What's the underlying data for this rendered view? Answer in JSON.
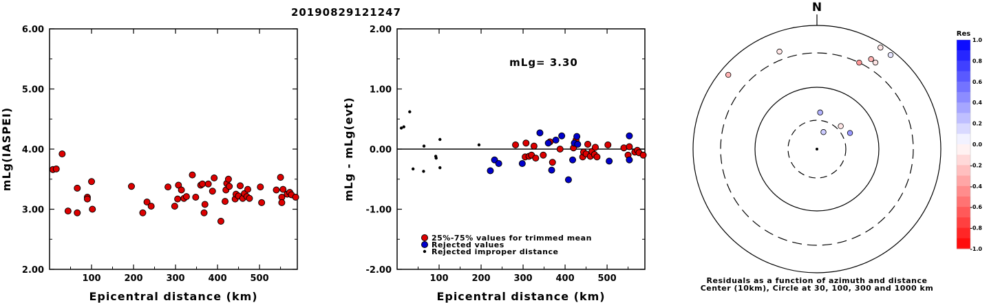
{
  "title": "20190829121247",
  "magnitude_label": "mLg= 3.30",
  "polar_north": "N",
  "polar_caption_1": "Residuals as a function of azimuth and distance",
  "polar_caption_2": "Center (10km), Circle at 30, 100, 300 and 1000 km",
  "colorbar_title": "Res",
  "colorbar_ticks": [
    "1.0",
    "0.8",
    "0.6",
    "0.4",
    "0.2",
    "0.0",
    "-0.2",
    "-0.4",
    "-0.6",
    "-0.8",
    "-1.0"
  ],
  "legend": [
    {
      "label": "25%-75% values for trimmed mean",
      "color": "#dd0000",
      "kind": "circle"
    },
    {
      "label": "Rejected values",
      "color": "#0000cc",
      "kind": "circle"
    },
    {
      "label": "Rejected improper distance",
      "color": "#000000",
      "kind": "dot"
    }
  ],
  "chart_data": [
    {
      "type": "scatter",
      "xlabel": "Epicentral distance (km)",
      "ylabel": "mLg(IASPEI)",
      "xlim": [
        0,
        590
      ],
      "ylim": [
        2.0,
        6.0
      ],
      "x_ticks": [
        "100",
        "200",
        "300",
        "400",
        "500"
      ],
      "y_ticks": [
        "2.00",
        "3.00",
        "4.00",
        "5.00",
        "6.00"
      ],
      "series": [
        {
          "color": "#dd0000",
          "points": [
            [
              8,
              3.66
            ],
            [
              16,
              3.67
            ],
            [
              30,
              3.92
            ],
            [
              44,
              2.97
            ],
            [
              66,
              2.94
            ],
            [
              66,
              3.35
            ],
            [
              90,
              3.2
            ],
            [
              90,
              3.17
            ],
            [
              100,
              3.46
            ],
            [
              102,
              3.0
            ],
            [
              195,
              3.38
            ],
            [
              222,
              2.94
            ],
            [
              232,
              3.12
            ],
            [
              242,
              3.05
            ],
            [
              282,
              3.37
            ],
            [
              298,
              3.05
            ],
            [
              305,
              3.17
            ],
            [
              307,
              3.4
            ],
            [
              314,
              3.32
            ],
            [
              320,
              3.18
            ],
            [
              326,
              3.21
            ],
            [
              340,
              3.57
            ],
            [
              348,
              3.2
            ],
            [
              360,
              3.4
            ],
            [
              364,
              3.42
            ],
            [
              368,
              2.94
            ],
            [
              370,
              3.08
            ],
            [
              378,
              3.42
            ],
            [
              388,
              3.3
            ],
            [
              392,
              3.52
            ],
            [
              408,
              2.8
            ],
            [
              418,
              3.13
            ],
            [
              420,
              3.32
            ],
            [
              422,
              3.43
            ],
            [
              426,
              3.5
            ],
            [
              428,
              3.38
            ],
            [
              442,
              3.17
            ],
            [
              444,
              3.25
            ],
            [
              450,
              3.22
            ],
            [
              454,
              3.39
            ],
            [
              460,
              3.18
            ],
            [
              464,
              3.26
            ],
            [
              470,
              3.21
            ],
            [
              472,
              3.33
            ],
            [
              476,
              3.18
            ],
            [
              502,
              3.37
            ],
            [
              505,
              3.11
            ],
            [
              540,
              3.32
            ],
            [
              550,
              3.53
            ],
            [
              553,
              3.2
            ],
            [
              553,
              3.11
            ],
            [
              556,
              3.33
            ],
            [
              566,
              3.25
            ],
            [
              572,
              3.28
            ],
            [
              576,
              3.24
            ],
            [
              586,
              3.2
            ]
          ]
        }
      ]
    },
    {
      "type": "scatter",
      "xlabel": "Epicentral distance (km)",
      "ylabel": "mLg - mLg(evt)",
      "xlim": [
        0,
        590
      ],
      "ylim": [
        -2.0,
        2.0
      ],
      "x_ticks": [
        "100",
        "200",
        "300",
        "400",
        "500"
      ],
      "y_ticks": [
        "-2.00",
        "-1.00",
        "0.00",
        "1.00",
        "2.00"
      ],
      "series": [
        {
          "name": "25%-75% values for trimmed mean",
          "color": "#dd0000",
          "points": [
            [
              282,
              0.07
            ],
            [
              305,
              -0.13
            ],
            [
              307,
              0.1
            ],
            [
              314,
              -0.12
            ],
            [
              320,
              -0.1
            ],
            [
              326,
              0.05
            ],
            [
              330,
              -0.15
            ],
            [
              348,
              -0.1
            ],
            [
              364,
              0.12
            ],
            [
              370,
              -0.22
            ],
            [
              388,
              0.0
            ],
            [
              420,
              0.02
            ],
            [
              426,
              0.15
            ],
            [
              442,
              -0.13
            ],
            [
              444,
              -0.05
            ],
            [
              450,
              -0.08
            ],
            [
              454,
              0.08
            ],
            [
              460,
              -0.12
            ],
            [
              464,
              -0.04
            ],
            [
              470,
              -0.09
            ],
            [
              472,
              0.03
            ],
            [
              476,
              -0.13
            ],
            [
              502,
              0.07
            ],
            [
              540,
              0.02
            ],
            [
              550,
              -0.1
            ],
            [
              553,
              0.04
            ],
            [
              566,
              -0.05
            ],
            [
              572,
              -0.02
            ],
            [
              576,
              -0.06
            ],
            [
              586,
              -0.1
            ]
          ]
        },
        {
          "name": "Rejected values",
          "color": "#0000cc",
          "points": [
            [
              222,
              -0.36
            ],
            [
              232,
              -0.18
            ],
            [
              242,
              -0.24
            ],
            [
              298,
              -0.24
            ],
            [
              340,
              0.27
            ],
            [
              360,
              0.1
            ],
            [
              368,
              -0.35
            ],
            [
              378,
              0.15
            ],
            [
              392,
              0.22
            ],
            [
              408,
              -0.51
            ],
            [
              418,
              -0.18
            ],
            [
              422,
              0.1
            ],
            [
              428,
              0.21
            ],
            [
              430,
              0.08
            ],
            [
              505,
              -0.2
            ],
            [
              553,
              0.22
            ],
            [
              553,
              -0.18
            ]
          ]
        },
        {
          "name": "Rejected improper distance",
          "color": "#000000",
          "points": [
            [
              10,
              0.35
            ],
            [
              16,
              0.37
            ],
            [
              30,
              0.62
            ],
            [
              38,
              -0.33
            ],
            [
              63,
              -0.37
            ],
            [
              64,
              0.05
            ],
            [
              92,
              -0.12
            ],
            [
              93,
              -0.15
            ],
            [
              102,
              -0.31
            ],
            [
              102,
              0.16
            ],
            [
              195,
              0.07
            ]
          ]
        }
      ]
    },
    {
      "type": "polar-scatter",
      "rings_km": [
        30,
        100,
        300,
        1000
      ],
      "center_km": 10,
      "points": [
        {
          "az": 310,
          "d": 700,
          "res": -0.3
        },
        {
          "az": 32,
          "d": 840,
          "res": -0.1
        },
        {
          "az": 38,
          "d": 830,
          "res": 0.1
        },
        {
          "az": 339,
          "d": 430,
          "res": -0.1
        },
        {
          "az": 5,
          "d": 40,
          "res": 0.3
        },
        {
          "az": 21,
          "d": 20,
          "res": 0.2
        },
        {
          "az": 64,
          "d": 40,
          "res": 0.4
        },
        {
          "az": 46,
          "d": 35,
          "res": -0.1
        },
        {
          "az": 31,
          "d": 440,
          "res": -0.3
        },
        {
          "az": 34,
          "d": 430,
          "res": -0.1
        },
        {
          "az": 26,
          "d": 300,
          "res": -0.4
        }
      ]
    }
  ]
}
